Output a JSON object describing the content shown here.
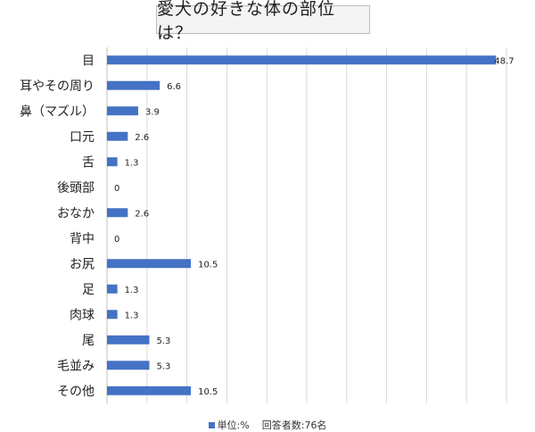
{
  "chart_data": {
    "type": "bar",
    "orientation": "horizontal",
    "title": "愛犬の好きな体の部位は？",
    "categories": [
      "目",
      "耳やその周り",
      "鼻（マズル）",
      "口元",
      "舌",
      "後頭部",
      "おなか",
      "背中",
      "お尻",
      "足",
      "肉球",
      "尾",
      "毛並み",
      "その他"
    ],
    "series": [
      {
        "name": "単位:%",
        "values": [
          48.7,
          6.6,
          3.9,
          2.6,
          1.3,
          0,
          2.6,
          0,
          10.5,
          1.3,
          1.3,
          5.3,
          5.3,
          10.5
        ],
        "value_labels": [
          "48.7",
          "6.6",
          "3.9",
          "2.6",
          "1.3",
          "0",
          "2.6",
          "0",
          "10.5",
          "1.3",
          "1.3",
          "5.3",
          "5.3",
          "10.5"
        ]
      }
    ],
    "note": "回答者数:76名",
    "xlim": [
      0,
      50
    ],
    "grid": true,
    "legend_position": "bottom",
    "bar_color": "#4472c4"
  }
}
